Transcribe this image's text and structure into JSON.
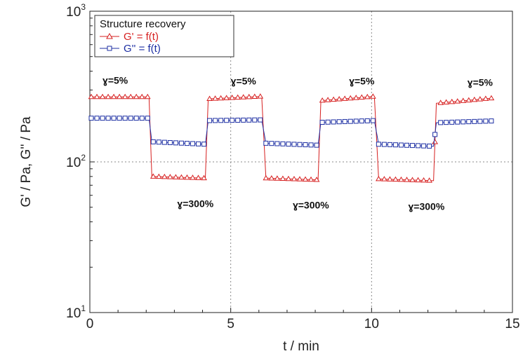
{
  "chart_data": {
    "type": "line",
    "xlabel": "t / min",
    "ylabel": "G' / Pa, G'' / Pa",
    "xlim": [
      0,
      15
    ],
    "ylim": [
      10,
      1000
    ],
    "yscale": "log",
    "grid": true,
    "legend_placement": "top-left",
    "x_ticks": [
      "0",
      "5",
      "10",
      "15"
    ],
    "y_ticks": [
      {
        "base": "10",
        "exp": "1"
      },
      {
        "base": "10",
        "exp": "2"
      },
      {
        "base": "10",
        "exp": "3"
      }
    ],
    "legend_title": "Structure recovery",
    "series": [
      {
        "name": "G' = f(t)",
        "color": "#d61f1f",
        "marker": "triangle",
        "points": [
          [
            0.05,
            270
          ],
          [
            2.1,
            270
          ],
          [
            2.2,
            80
          ],
          [
            4.1,
            78
          ],
          [
            4.2,
            262
          ],
          [
            6.1,
            272
          ],
          [
            6.25,
            78
          ],
          [
            8.1,
            76
          ],
          [
            8.2,
            255
          ],
          [
            10.1,
            272
          ],
          [
            10.25,
            77
          ],
          [
            12.2,
            75
          ],
          [
            12.3,
            245
          ],
          [
            14.3,
            265
          ]
        ]
      },
      {
        "name": "G'' = f(t)",
        "color": "#1d2fa3",
        "marker": "square",
        "points": [
          [
            0.05,
            195
          ],
          [
            2.1,
            195
          ],
          [
            2.2,
            136
          ],
          [
            4.1,
            131
          ],
          [
            4.2,
            188
          ],
          [
            6.1,
            190
          ],
          [
            6.25,
            133
          ],
          [
            8.1,
            129
          ],
          [
            8.2,
            183
          ],
          [
            10.1,
            188
          ],
          [
            10.25,
            131
          ],
          [
            12.2,
            127
          ],
          [
            12.3,
            182
          ],
          [
            14.3,
            187
          ]
        ]
      }
    ],
    "annotations": [
      {
        "text": "ɣ=5%",
        "x": 0.45,
        "y": 330
      },
      {
        "text": "ɣ=5%",
        "x": 5.0,
        "y": 327
      },
      {
        "text": "ɣ=5%",
        "x": 9.2,
        "y": 327
      },
      {
        "text": "ɣ=5%",
        "x": 13.4,
        "y": 320
      },
      {
        "text": "ɣ=300%",
        "x": 3.1,
        "y": 50
      },
      {
        "text": "ɣ=300%",
        "x": 7.2,
        "y": 49
      },
      {
        "text": "ɣ=300%",
        "x": 11.3,
        "y": 48
      }
    ]
  }
}
